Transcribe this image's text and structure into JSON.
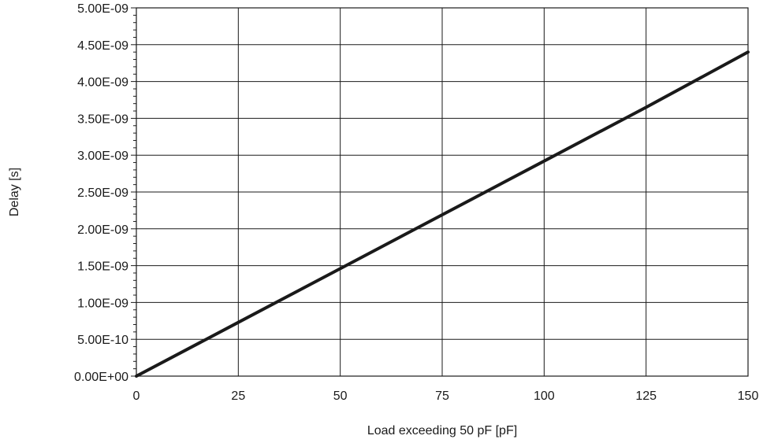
{
  "chart_data": {
    "type": "line",
    "title": "",
    "xlabel": "Load exceeding 50 pF [pF]",
    "ylabel": "Delay [s]",
    "xlim": [
      0,
      150
    ],
    "ylim": [
      0,
      5e-09
    ],
    "x_ticks": [
      0,
      25,
      50,
      75,
      100,
      125,
      150
    ],
    "x_tick_labels": [
      "0",
      "25",
      "50",
      "75",
      "100",
      "125",
      "150"
    ],
    "y_ticks": [
      0,
      5e-10,
      1e-09,
      1.5e-09,
      2e-09,
      2.5e-09,
      3e-09,
      3.5e-09,
      4e-09,
      4.5e-09,
      5e-09
    ],
    "y_tick_labels": [
      "0.00E+00",
      "5.00E-10",
      "1.00E-09",
      "1.50E-09",
      "2.00E-09",
      "2.50E-09",
      "3.00E-09",
      "3.50E-09",
      "4.00E-09",
      "4.50E-09",
      "5.00E-09"
    ],
    "grid": true,
    "legend": "none",
    "series": [
      {
        "x": [
          0,
          25,
          50,
          75,
          100,
          125,
          150
        ],
        "y": [
          0,
          7.3e-10,
          1.46e-09,
          2.19e-09,
          2.92e-09,
          3.65e-09,
          4.4e-09
        ],
        "color": "#1a1a1a"
      }
    ]
  }
}
